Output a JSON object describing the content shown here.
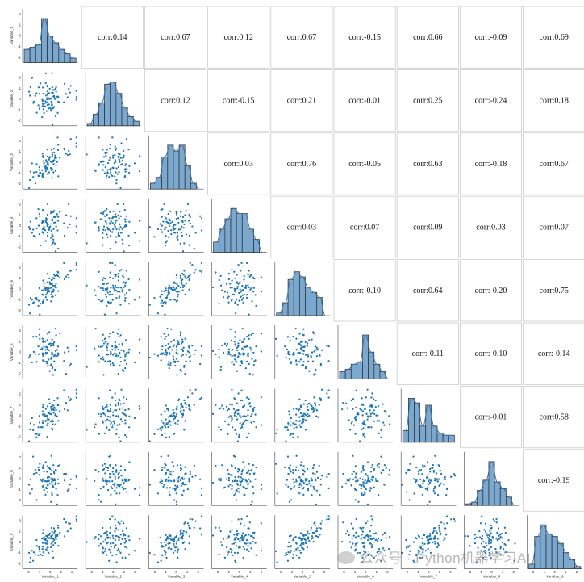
{
  "chart_data": {
    "type": "scatter",
    "variables": [
      "Variable_1",
      "Variable_2",
      "Variable_3",
      "Variable_4",
      "Variable_5",
      "Variable_6",
      "Variable_7",
      "Variable_8",
      "Variable_9"
    ],
    "correlations": [
      [
        1.0,
        0.14,
        0.67,
        0.12,
        0.67,
        -0.15,
        0.66,
        -0.09,
        0.69
      ],
      [
        0.14,
        1.0,
        0.12,
        -0.15,
        0.21,
        -0.01,
        0.25,
        -0.24,
        0.18
      ],
      [
        0.67,
        0.12,
        1.0,
        0.03,
        0.76,
        -0.05,
        0.63,
        -0.18,
        0.67
      ],
      [
        0.12,
        -0.15,
        0.03,
        1.0,
        0.03,
        0.07,
        0.09,
        0.03,
        0.07
      ],
      [
        0.67,
        0.21,
        0.76,
        0.03,
        1.0,
        -0.1,
        0.64,
        -0.2,
        0.75
      ],
      [
        -0.15,
        -0.01,
        -0.05,
        0.07,
        -0.1,
        1.0,
        -0.11,
        -0.1,
        -0.14
      ],
      [
        0.66,
        0.25,
        0.63,
        0.09,
        0.64,
        -0.11,
        1.0,
        -0.01,
        0.58
      ],
      [
        -0.09,
        -0.24,
        -0.18,
        0.03,
        -0.2,
        -0.1,
        -0.01,
        1.0,
        -0.19
      ],
      [
        0.69,
        0.18,
        0.67,
        0.07,
        0.75,
        -0.14,
        0.58,
        -0.19,
        1.0
      ]
    ],
    "corr_labels": [
      [
        "",
        "corr:0.14",
        "corr:0.67",
        "corr:0.12",
        "corr:0.67",
        "corr:-0.15",
        "corr:0.66",
        "corr:-0.09",
        "corr:0.69"
      ],
      [
        "",
        "",
        "corr:0.12",
        "corr:-0.15",
        "corr:0.21",
        "corr:-0.01",
        "corr:0.25",
        "corr:-0.24",
        "corr:0.18"
      ],
      [
        "",
        "",
        "",
        "corr:0.03",
        "corr:0.76",
        "corr:-0.05",
        "corr:0.63",
        "corr:-0.18",
        "corr:0.67"
      ],
      [
        "",
        "",
        "",
        "",
        "corr:0.03",
        "corr:0.07",
        "corr:0.09",
        "corr:0.03",
        "corr:0.07"
      ],
      [
        "",
        "",
        "",
        "",
        "",
        "corr:-0.10",
        "corr:0.64",
        "corr:-0.20",
        "corr:0.75"
      ],
      [
        "",
        "",
        "",
        "",
        "",
        "",
        "corr:-0.11",
        "corr:-0.10",
        "corr:-0.14"
      ],
      [
        "",
        "",
        "",
        "",
        "",
        "",
        "",
        "corr:-0.01",
        "corr:0.58"
      ],
      [
        "",
        "",
        "",
        "",
        "",
        "",
        "",
        "",
        "corr:-0.19"
      ],
      [
        "",
        "",
        "",
        "",
        "",
        "",
        "",
        "",
        ""
      ]
    ],
    "histograms": [
      [
        6,
        7,
        8,
        20,
        12,
        9,
        6,
        4,
        2
      ],
      [
        1,
        5,
        10,
        18,
        19,
        14,
        8,
        4,
        2
      ],
      [
        2,
        4,
        11,
        15,
        13,
        15,
        8,
        2,
        0
      ],
      [
        4,
        9,
        13,
        17,
        15,
        15,
        9,
        5,
        0
      ],
      [
        1,
        5,
        14,
        17,
        15,
        11,
        9,
        7,
        0
      ],
      [
        3,
        4,
        6,
        7,
        18,
        11,
        6,
        3,
        0
      ],
      [
        5,
        19,
        17,
        7,
        16,
        7,
        4,
        3,
        3
      ],
      [
        1,
        2,
        9,
        15,
        26,
        14,
        10,
        5,
        0
      ],
      [
        2,
        14,
        19,
        15,
        14,
        11,
        7,
        4,
        1
      ]
    ],
    "axis_range": [
      -2.5,
      2.5
    ],
    "ticks": [
      -2,
      -1,
      0,
      1,
      2
    ],
    "point_color": "#1f77b4",
    "hist_color": "#7aa8cf",
    "grid": false,
    "xlabel": "",
    "ylabel": "",
    "title": ""
  },
  "watermark": {
    "text": "公众号 · Python机器学习AI"
  },
  "colors": {
    "point": "#1f77b4",
    "bar_fill": "#7aa8cf",
    "bar_edge": "#2b2b2b",
    "kde_line": "#3b6ea5",
    "frame": "#cccccc",
    "spine": "#444444"
  }
}
